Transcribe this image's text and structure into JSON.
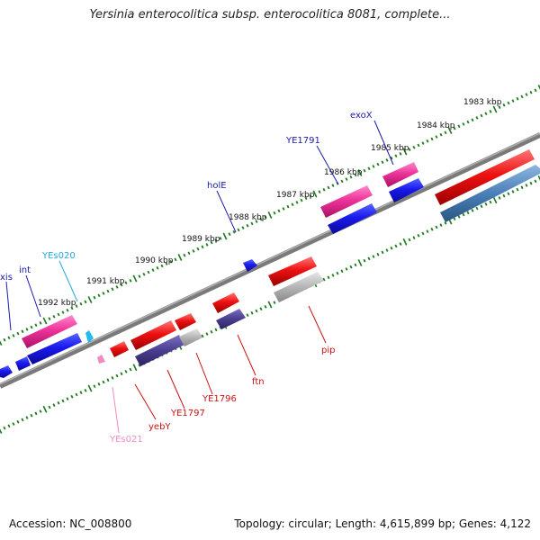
{
  "title": "Yersinia enterocolitica subsp. enterocolitica 8081, complete...",
  "footer": {
    "accession": "Accession: NC_008800",
    "summary": "Topology: circular; Length: 4,615,899 bp; Genes: 4,122"
  },
  "ruler": {
    "unit": "kbp",
    "ticks": [
      "1983 kbp",
      "1984 kbp",
      "1985 kbp",
      "1986 kbp",
      "1987 kbp",
      "1988 kbp",
      "1989 kbp",
      "1990 kbp",
      "1991 kbp",
      "1992 kbp"
    ]
  },
  "colors": {
    "backbone": "#7a7a7a",
    "dots": "#1f7a1f",
    "magenta": "#ee3399",
    "blue": "#1a1aee",
    "red": "#ee1111",
    "navy": "#4a3d8f",
    "grey": "#b5b5b5",
    "steel": "#4a7fb8",
    "cyan": "#22bbee",
    "pink": "#f08cc0"
  },
  "gene_labels": [
    {
      "id": "exoX",
      "text": "exoX",
      "color": "#1a1aaa"
    },
    {
      "id": "YE1791",
      "text": "YE1791",
      "color": "#1a1aaa"
    },
    {
      "id": "holE",
      "text": "holE",
      "color": "#1a1aaa"
    },
    {
      "id": "YEs020",
      "text": "YEs020",
      "color": "#22aadd"
    },
    {
      "id": "int",
      "text": "int",
      "color": "#1a1aaa"
    },
    {
      "id": "xis",
      "text": "xis",
      "color": "#1a1aaa"
    },
    {
      "id": "pip",
      "text": "pip",
      "color": "#cc1111"
    },
    {
      "id": "ftn",
      "text": "ftn",
      "color": "#cc1111"
    },
    {
      "id": "YE1796",
      "text": "YE1796",
      "color": "#cc1111"
    },
    {
      "id": "YE1797",
      "text": "YE1797",
      "color": "#cc1111"
    },
    {
      "id": "yebY",
      "text": "yebY",
      "color": "#cc1111"
    },
    {
      "id": "YEs021",
      "text": "YEs021",
      "color": "#f08cc0"
    }
  ]
}
